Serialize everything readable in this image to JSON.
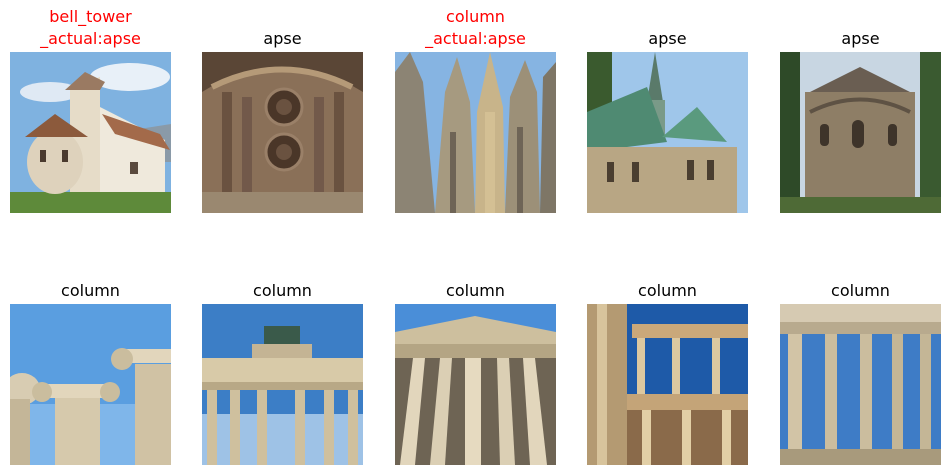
{
  "grid": [
    {
      "label": "bell_tower\n_actual:apse",
      "misclassified": true,
      "scene": "chapel"
    },
    {
      "label": "apse",
      "misclassified": false,
      "scene": "rose-window"
    },
    {
      "label": "column\n_actual:apse",
      "misclassified": true,
      "scene": "gothic-spires"
    },
    {
      "label": "apse",
      "misclassified": false,
      "scene": "green-roof-church"
    },
    {
      "label": "apse",
      "misclassified": false,
      "scene": "stone-apse"
    },
    {
      "label": "column",
      "misclassified": false,
      "scene": "ionic-capitals"
    },
    {
      "label": "column",
      "misclassified": false,
      "scene": "brandenburg-gate"
    },
    {
      "label": "column",
      "misclassified": false,
      "scene": "portico"
    },
    {
      "label": "column",
      "misclassified": false,
      "scene": "roman-theatre"
    },
    {
      "label": "column",
      "misclassified": false,
      "scene": "temple-ruins"
    }
  ],
  "colors": {
    "wrong": "#ff0000",
    "correct": "#000000"
  }
}
